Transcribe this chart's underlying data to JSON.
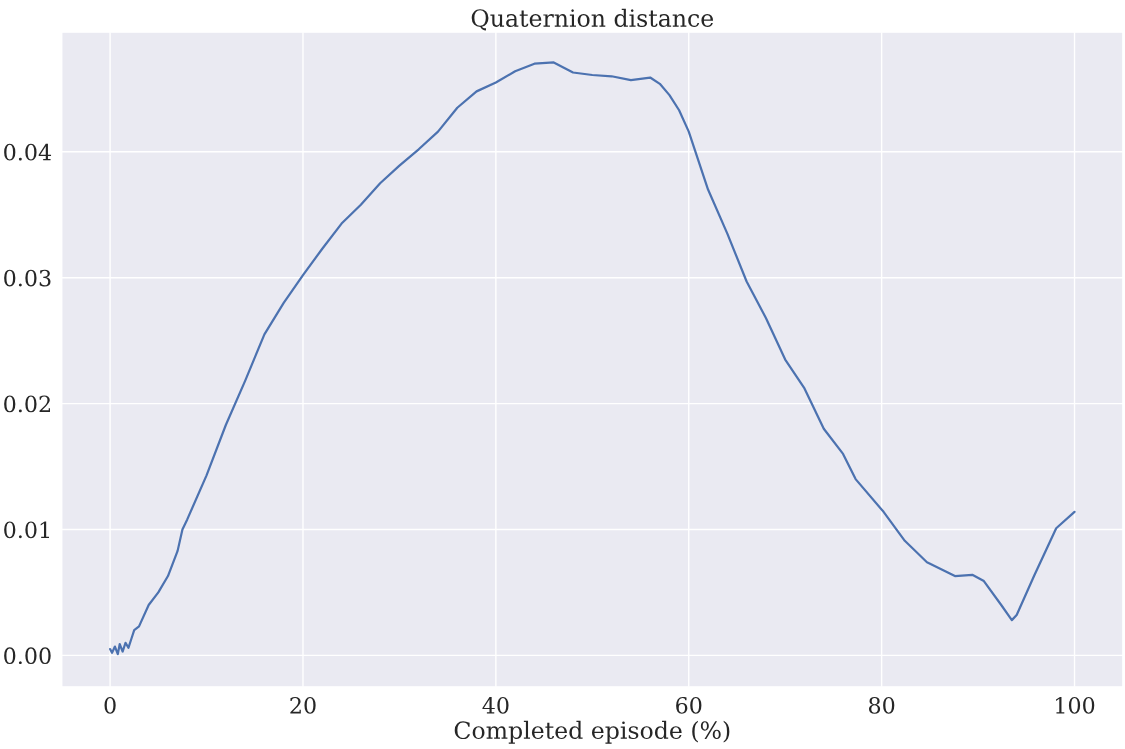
{
  "chart_data": {
    "type": "line",
    "title": "Quaternion distance",
    "xlabel": "Completed episode (%)",
    "xlim": [
      -5,
      105
    ],
    "ylim": [
      -0.0025,
      0.0495
    ],
    "xticks": [
      0,
      20,
      40,
      60,
      80,
      100
    ],
    "yticks": [
      {
        "value": 0,
        "label": "0.00"
      },
      {
        "value": 0.01,
        "label": "0.01"
      },
      {
        "value": 0.02,
        "label": "0.02"
      },
      {
        "value": 0.03,
        "label": "0.03"
      },
      {
        "value": 0.04,
        "label": "0.04"
      }
    ],
    "grid": true,
    "marker": "none",
    "line_style": "solid",
    "series": [
      {
        "color": "#4c72b0",
        "x": [
          0,
          0.2,
          0.5,
          0.8,
          1.0,
          1.3,
          1.6,
          1.9,
          2.2,
          2.5,
          3,
          4,
          5,
          6,
          7,
          7.5,
          8,
          10,
          12,
          14,
          16,
          18,
          20,
          22,
          24,
          26,
          28,
          30,
          32,
          34,
          36,
          38,
          40,
          42,
          44,
          46,
          47,
          48,
          50,
          52,
          54,
          56,
          57,
          58,
          59,
          60,
          62,
          64,
          66,
          68,
          70,
          72,
          74,
          76,
          77.3,
          80.2,
          82.4,
          84.7,
          87.6,
          89.4,
          90.6,
          92.4,
          93.5,
          94.0,
          95.8,
          98.1,
          100
        ],
        "values": [
          0.0005,
          0.0002,
          0.0007,
          0.0001,
          0.0009,
          0.0003,
          0.001,
          0.0006,
          0.0013,
          0.002,
          0.0023,
          0.004,
          0.005,
          0.0063,
          0.0083,
          0.01,
          0.0108,
          0.0143,
          0.0183,
          0.0218,
          0.0255,
          0.028,
          0.0302,
          0.0323,
          0.0343,
          0.0358,
          0.0375,
          0.0389,
          0.0402,
          0.0416,
          0.0435,
          0.0448,
          0.0455,
          0.0464,
          0.047,
          0.0471,
          0.0467,
          0.0463,
          0.0461,
          0.046,
          0.0457,
          0.0459,
          0.0454,
          0.0445,
          0.0433,
          0.0416,
          0.037,
          0.0335,
          0.0297,
          0.0268,
          0.0235,
          0.0212,
          0.018,
          0.016,
          0.014,
          0.0114,
          0.0091,
          0.0074,
          0.0063,
          0.0064,
          0.0059,
          0.004,
          0.0028,
          0.0032,
          0.0063,
          0.0101,
          0.0114
        ]
      }
    ]
  }
}
